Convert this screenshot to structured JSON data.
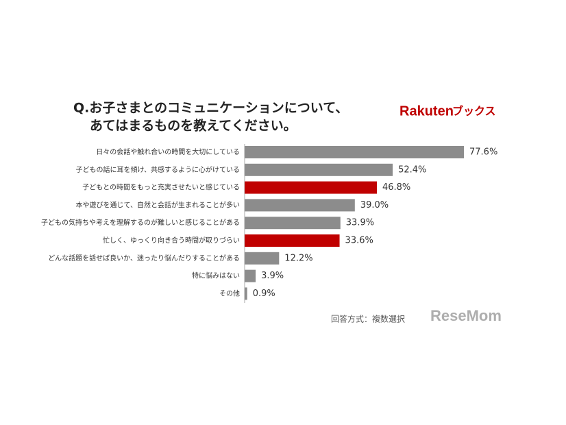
{
  "chart_data": {
    "type": "hbar",
    "title": [
      "Q.お子さまとのコミュニケーションについて、",
      "あてはまるものを教えてください。"
    ],
    "logo": [
      "Rakuten",
      "ブックス"
    ],
    "note": "回答方式：複数選択",
    "watermark": "ReseMom",
    "categories": [
      "日々の会話や触れ合いの時間を大切にしている",
      "子どもの話に耳を傾け、共感するように心がけている",
      "子どもとの時間をもっと充実させたいと感じている",
      "本や遊びを通じて、自然と会話が生まれることが多い",
      "子どもの気持ちや考えを理解するのが難しいと感じることがある",
      "忙しく、ゆっくり向き合う時間が取りづらい",
      "どんな話題を話せば良いか、迷ったり悩んだりすることがある",
      "特に悩みはない",
      "その他"
    ],
    "values": [
      77.6,
      52.4,
      46.8,
      39.0,
      33.9,
      33.6,
      12.2,
      3.9,
      0.9
    ],
    "value_labels": [
      "77.6%",
      "52.4%",
      "46.8%",
      "39.0%",
      "33.9%",
      "33.6%",
      "12.2%",
      "3.9%",
      "0.9%"
    ],
    "colors": [
      "#8c8c8c",
      "#8c8c8c",
      "#c00000",
      "#8c8c8c",
      "#8c8c8c",
      "#c00000",
      "#8c8c8c",
      "#8c8c8c",
      "#8c8c8c"
    ]
  }
}
